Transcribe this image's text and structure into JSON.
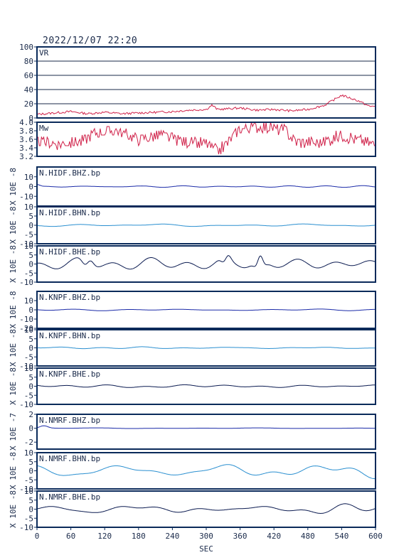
{
  "title": "2022/12/07 22:20",
  "xlabel": "SEC",
  "x_ticks": [
    0,
    60,
    120,
    180,
    240,
    300,
    360,
    420,
    480,
    540,
    600
  ],
  "colors": {
    "frame": "#0a2a5a",
    "vr": "#d0224a",
    "mw": "#d0224a",
    "bhz": "#1a2aa8",
    "bhn": "#2a8fd0",
    "bhe": "#0a1a50"
  },
  "chart_data": [
    {
      "type": "line",
      "id": "vr",
      "label": "VR",
      "ylim": [
        0,
        100
      ],
      "yticks": [
        0,
        20,
        40,
        60,
        80,
        100
      ],
      "grid": true,
      "series": [
        {
          "color": "#d0224a",
          "keyframes": [
            [
              0,
              5
            ],
            [
              30,
              7
            ],
            [
              60,
              9
            ],
            [
              90,
              6
            ],
            [
              120,
              8
            ],
            [
              150,
              6
            ],
            [
              180,
              7
            ],
            [
              210,
              8
            ],
            [
              240,
              9
            ],
            [
              270,
              11
            ],
            [
              300,
              12
            ],
            [
              310,
              18
            ],
            [
              320,
              12
            ],
            [
              360,
              14
            ],
            [
              390,
              11
            ],
            [
              420,
              12
            ],
            [
              450,
              10
            ],
            [
              480,
              12
            ],
            [
              510,
              18
            ],
            [
              540,
              32
            ],
            [
              570,
              24
            ],
            [
              590,
              16
            ],
            [
              600,
              17
            ]
          ]
        }
      ]
    },
    {
      "type": "line",
      "id": "mw",
      "label": "Mw",
      "ylim": [
        3.2,
        4.0
      ],
      "yticks": [
        3.2,
        3.4,
        3.6,
        3.8,
        4.0
      ],
      "grid": false,
      "series": [
        {
          "color": "#d0224a",
          "keyframes": [
            [
              0,
              3.55
            ],
            [
              40,
              3.5
            ],
            [
              80,
              3.55
            ],
            [
              100,
              3.75
            ],
            [
              140,
              3.8
            ],
            [
              180,
              3.6
            ],
            [
              220,
              3.7
            ],
            [
              260,
              3.55
            ],
            [
              300,
              3.5
            ],
            [
              320,
              3.3
            ],
            [
              340,
              3.55
            ],
            [
              360,
              3.85
            ],
            [
              400,
              3.9
            ],
            [
              440,
              3.8
            ],
            [
              460,
              3.55
            ],
            [
              500,
              3.5
            ],
            [
              540,
              3.7
            ],
            [
              580,
              3.55
            ],
            [
              600,
              3.45
            ]
          ]
        }
      ]
    },
    {
      "type": "line",
      "id": "hidf-bhz",
      "label": "N.HIDF.BHZ.bp",
      "ylabel": "X 10E -8",
      "ylim": [
        -20,
        20
      ],
      "yticks": [
        -10,
        0,
        10
      ],
      "amplitude": 1.0,
      "series": [
        {
          "color": "#1a2aa8"
        }
      ]
    },
    {
      "type": "line",
      "id": "hidf-bhn",
      "label": "N.HIDF.BHN.bp",
      "ylabel": "X 10E -8",
      "ylim": [
        -10,
        10
      ],
      "yticks": [
        -10,
        -5,
        0,
        5,
        10
      ],
      "amplitude": 0.8,
      "series": [
        {
          "color": "#2a8fd0"
        }
      ]
    },
    {
      "type": "line",
      "id": "hidf-bhe",
      "label": "N.HIDF.BHE.bp",
      "ylabel": "X 10E -8",
      "ylim": [
        -10,
        10
      ],
      "yticks": [
        -10,
        -5,
        0,
        5,
        10
      ],
      "amplitude": 5.0,
      "series": [
        {
          "color": "#0a1a50"
        }
      ]
    },
    {
      "type": "line",
      "id": "knpf-bhz",
      "label": "N.KNPF.BHZ.bp",
      "ylabel": "X 10E -8",
      "ylim": [
        -20,
        20
      ],
      "yticks": [
        -20,
        -10,
        0,
        10
      ],
      "amplitude": 0.8,
      "series": [
        {
          "color": "#1a2aa8"
        }
      ]
    },
    {
      "type": "line",
      "id": "knpf-bhn",
      "label": "N.KNPF.BHN.bp",
      "ylabel": "X 10E -8",
      "ylim": [
        -10,
        10
      ],
      "yticks": [
        -10,
        -5,
        0,
        5,
        10
      ],
      "amplitude": 0.4,
      "series": [
        {
          "color": "#2a8fd0"
        }
      ]
    },
    {
      "type": "line",
      "id": "knpf-bhe",
      "label": "N.KNPF.BHE.bp",
      "ylabel": "X 10E -8",
      "ylim": [
        -10,
        10
      ],
      "yticks": [
        -10,
        -5,
        0,
        5,
        10
      ],
      "amplitude": 0.7,
      "series": [
        {
          "color": "#0a1a50"
        }
      ]
    },
    {
      "type": "line",
      "id": "nmrf-bhz",
      "label": "N.NMRF.BHZ.bp",
      "ylabel": "X 10E -7",
      "ylim": [
        -3,
        2
      ],
      "yticks": [
        -2,
        0,
        2
      ],
      "amplitude": 0.05,
      "series": [
        {
          "color": "#1a2aa8"
        }
      ]
    },
    {
      "type": "line",
      "id": "nmrf-bhn",
      "label": "N.NMRF.BHN.bp",
      "ylabel": "X 10E -8",
      "ylim": [
        -10,
        10
      ],
      "yticks": [
        -10,
        -5,
        0,
        5,
        10
      ],
      "amplitude": 3.0,
      "series": [
        {
          "color": "#2a8fd0"
        }
      ]
    },
    {
      "type": "line",
      "id": "nmrf-bhe",
      "label": "N.NMRF.BHE.bp",
      "ylabel": "X 10E -8",
      "ylim": [
        -10,
        10
      ],
      "yticks": [
        -10,
        -5,
        0,
        5,
        10
      ],
      "amplitude": 2.5,
      "series": [
        {
          "color": "#0a1a50"
        }
      ]
    }
  ]
}
